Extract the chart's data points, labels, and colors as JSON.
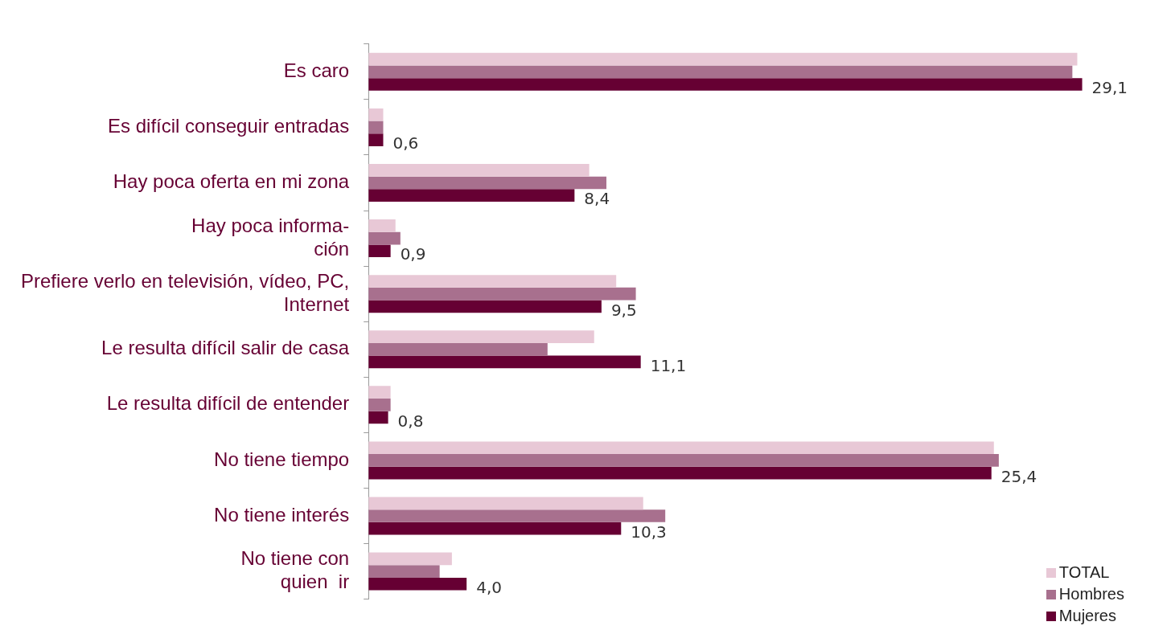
{
  "chart_data": {
    "type": "bar",
    "orientation": "horizontal",
    "categories": [
      "Es caro",
      "Es difícil conseguir entradas",
      "Hay poca oferta en mi zona",
      "Hay poca informa-\nción",
      "Prefiere verlo en televisión, vídeo, PC,\nInternet",
      "Le resulta difícil salir de casa",
      "Le resulta difícil de entender",
      "No tiene tiempo",
      "No tiene interés",
      "No tiene con\nquien  ir"
    ],
    "series": [
      {
        "name": "TOTAL",
        "color": "#e8c8d6",
        "values": [
          28.9,
          0.6,
          9.0,
          1.1,
          10.1,
          9.2,
          0.9,
          25.5,
          11.2,
          3.4
        ]
      },
      {
        "name": "Hombres",
        "color": "#a8708e",
        "values": [
          28.7,
          0.6,
          9.7,
          1.3,
          10.9,
          7.3,
          0.9,
          25.7,
          12.1,
          2.9
        ]
      },
      {
        "name": "Mujeres",
        "color": "#660033",
        "values": [
          29.1,
          0.6,
          8.4,
          0.9,
          9.5,
          11.1,
          0.8,
          25.4,
          10.3,
          4.0
        ],
        "value_labels": [
          "29,1",
          "0,6",
          "8,4",
          "0,9",
          "9,5",
          "11,1",
          "0,8",
          "25,4",
          "10,3",
          "4,0"
        ]
      }
    ],
    "legend": "bottom right",
    "grid": false
  }
}
